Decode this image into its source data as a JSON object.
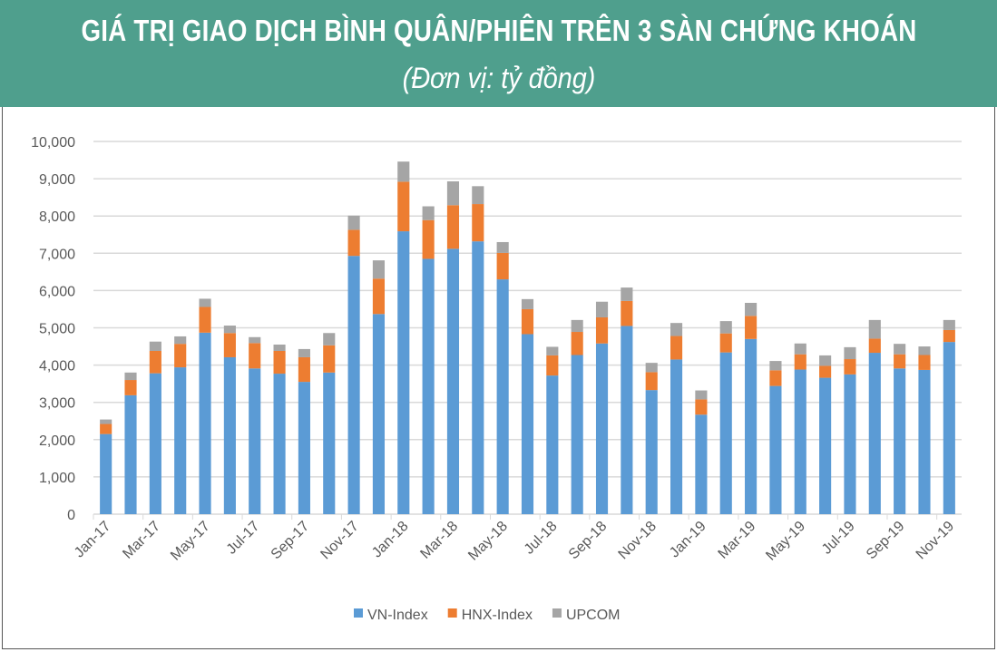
{
  "header": {
    "title": "GIÁ TRỊ GIAO DỊCH BÌNH QUÂN/PHIÊN TRÊN 3 SÀN CHỨNG KHOÁN",
    "subtitle": "(Đơn vị: tỷ đồng)"
  },
  "chart_data": {
    "type": "bar",
    "stacked": true,
    "grid": true,
    "legend": "bottom",
    "title": "GIÁ TRỊ GIAO DỊCH BÌNH QUÂN/PHIÊN TRÊN 3 SÀN CHỨNG KHOÁN",
    "ylim": [
      0,
      10000
    ],
    "yticks": [
      "0",
      "1,000",
      "2,000",
      "3,000",
      "4,000",
      "5,000",
      "6,000",
      "7,000",
      "8,000",
      "9,000",
      "10,000"
    ],
    "categories": [
      "Jan-17",
      "Feb-17",
      "Mar-17",
      "Apr-17",
      "May-17",
      "Jun-17",
      "Jul-17",
      "Aug-17",
      "Sep-17",
      "Oct-17",
      "Nov-17",
      "Dec-17",
      "Jan-18",
      "Feb-18",
      "Mar-18",
      "Apr-18",
      "May-18",
      "Jun-18",
      "Jul-18",
      "Aug-18",
      "Sep-18",
      "Oct-18",
      "Nov-18",
      "Dec-18",
      "Jan-19",
      "Feb-19",
      "Mar-19",
      "Apr-19",
      "May-19",
      "Jun-19",
      "Jul-19",
      "Aug-19",
      "Sep-19",
      "Oct-19",
      "Nov-19"
    ],
    "xticks_shown": [
      "Jan-17",
      "Mar-17",
      "May-17",
      "Jul-17",
      "Sep-17",
      "Nov-17",
      "Jan-18",
      "Mar-18",
      "May-18",
      "Jul-18",
      "Sep-18",
      "Nov-18",
      "Jan-19",
      "Mar-19",
      "May-19",
      "Jul-19",
      "Sep-19",
      "Nov-19"
    ],
    "series": [
      {
        "name": "VN-Index",
        "color": "#5b9bd5",
        "values": [
          2150,
          3190,
          3780,
          3940,
          4870,
          4210,
          3910,
          3770,
          3550,
          3800,
          6930,
          5370,
          7590,
          6850,
          7120,
          7320,
          6300,
          4830,
          3720,
          4270,
          4580,
          5050,
          3330,
          4150,
          2670,
          4340,
          4700,
          3440,
          3880,
          3660,
          3750,
          4330,
          3910,
          3870,
          4620
        ]
      },
      {
        "name": "HNX-Index",
        "color": "#ed7d31",
        "values": [
          270,
          410,
          600,
          630,
          690,
          650,
          680,
          610,
          660,
          730,
          700,
          950,
          1330,
          1040,
          1170,
          1000,
          710,
          670,
          540,
          620,
          700,
          670,
          480,
          630,
          410,
          510,
          620,
          420,
          410,
          320,
          410,
          380,
          380,
          400,
          320
        ]
      },
      {
        "name": "UPCOM",
        "color": "#a5a5a5",
        "values": [
          120,
          200,
          250,
          200,
          220,
          200,
          160,
          170,
          220,
          330,
          380,
          490,
          540,
          370,
          640,
          480,
          290,
          270,
          230,
          320,
          420,
          360,
          250,
          350,
          240,
          330,
          350,
          250,
          290,
          280,
          320,
          500,
          280,
          230,
          270
        ]
      }
    ]
  }
}
